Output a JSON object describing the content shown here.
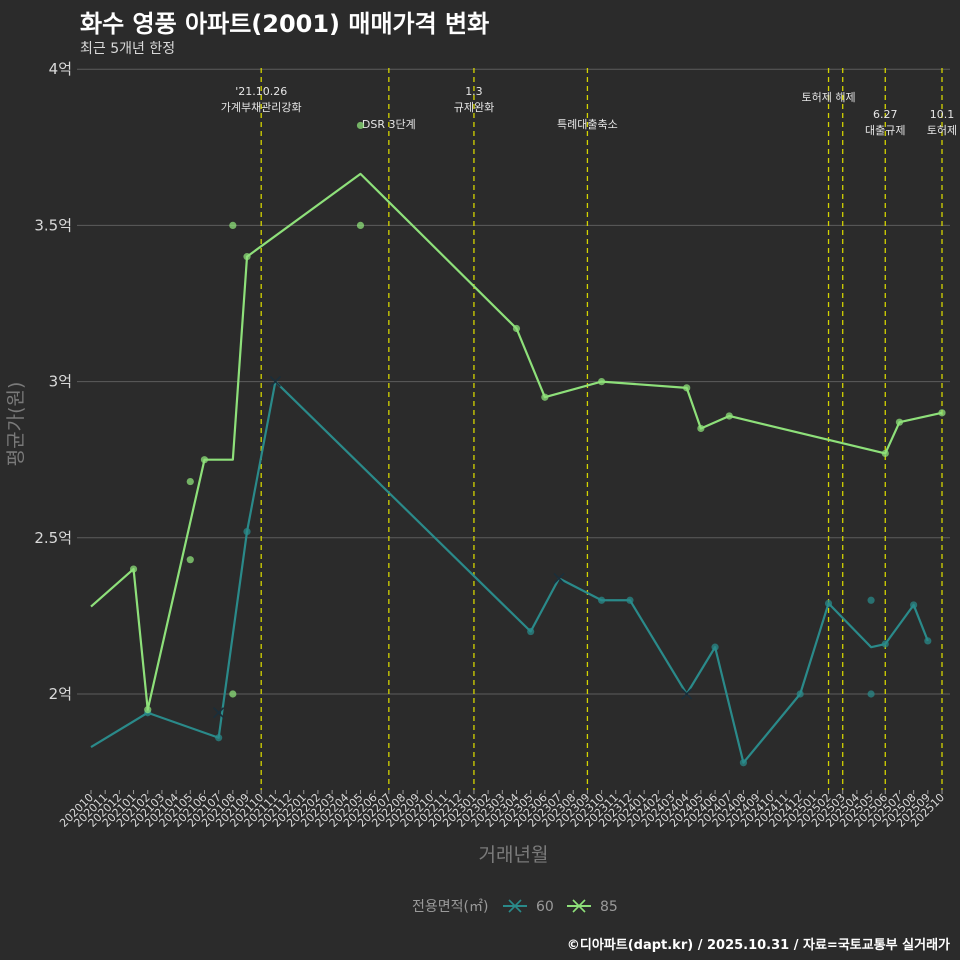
{
  "title": "화수 영풍 아파트(2001) 매매가격 변화",
  "subtitle": "최근 5개년 한정",
  "caption": "©디아파트(dapt.kr) / 2025.10.31 / 자료=국토교통부 실거래가",
  "colors": {
    "background": "#2b2b2b",
    "grid": "#5c5c5c",
    "vline": "#d4d400",
    "series_60": "#2a8a8a",
    "series_85": "#8ee07a"
  },
  "chart_data": {
    "type": "line",
    "title": "화수 영풍 아파트(2001) 매매가격 변화",
    "xlabel": "거래년월",
    "ylabel": "평균가(원)",
    "ylim": [
      1.7,
      4.0
    ],
    "y_ticks": [
      {
        "value": 2.0,
        "label": "2억"
      },
      {
        "value": 2.5,
        "label": "2.5억"
      },
      {
        "value": 3.0,
        "label": "3억"
      },
      {
        "value": 3.5,
        "label": "3.5억"
      },
      {
        "value": 4.0,
        "label": "4억"
      }
    ],
    "categories": [
      "202010",
      "202011",
      "202012",
      "202101",
      "202102",
      "202103",
      "202104",
      "202105",
      "202106",
      "202107",
      "202108",
      "202109",
      "202110",
      "202111",
      "202112",
      "202201",
      "202202",
      "202203",
      "202204",
      "202205",
      "202206",
      "202207",
      "202208",
      "202209",
      "202210",
      "202211",
      "202212",
      "202301",
      "202302",
      "202303",
      "202304",
      "202305",
      "202306",
      "202307",
      "202308",
      "202309",
      "202310",
      "202311",
      "202312",
      "202401",
      "202402",
      "202403",
      "202404",
      "202405",
      "202406",
      "202407",
      "202408",
      "202409",
      "202410",
      "202411",
      "202412",
      "202501",
      "202502",
      "202503",
      "202504",
      "202505",
      "202506",
      "202507",
      "202508",
      "202509",
      "202510"
    ],
    "legend_title": "전용면적(㎡)",
    "series": [
      {
        "name": "60",
        "color": "#2a8a8a",
        "line": [
          [
            "202010",
            1.83
          ],
          [
            "202102",
            1.94
          ],
          [
            "202107",
            1.86
          ],
          [
            "202109",
            2.52
          ],
          [
            "202111",
            3.0
          ],
          [
            "202305",
            2.2
          ],
          [
            "202307",
            2.37
          ],
          [
            "202310",
            2.3
          ],
          [
            "202312",
            2.3
          ],
          [
            "202404",
            2.0
          ],
          [
            "202406",
            2.15
          ],
          [
            "202408",
            1.78
          ],
          [
            "202412",
            2.0
          ],
          [
            "202502",
            2.29
          ],
          [
            "202505",
            2.15
          ],
          [
            "202506",
            2.16
          ],
          [
            "202508",
            2.285
          ],
          [
            "202509",
            2.17
          ]
        ],
        "points": [
          [
            "202102",
            1.94
          ],
          [
            "202107",
            1.86
          ],
          [
            "202109",
            2.52
          ],
          [
            "202305",
            2.2
          ],
          [
            "202310",
            2.3
          ],
          [
            "202312",
            2.3
          ],
          [
            "202406",
            2.15
          ],
          [
            "202408",
            1.78
          ],
          [
            "202412",
            2.0
          ],
          [
            "202502",
            2.29
          ],
          [
            "202505",
            2.3
          ],
          [
            "202505",
            2.0
          ],
          [
            "202506",
            2.16
          ],
          [
            "202508",
            2.285
          ],
          [
            "202509",
            2.17
          ]
        ],
        "crosses": [
          [
            "202107",
            1.94
          ],
          [
            "202111",
            3.0
          ],
          [
            "202307",
            2.37
          ],
          [
            "202404",
            2.0
          ]
        ]
      },
      {
        "name": "85",
        "color": "#8ee07a",
        "line": [
          [
            "202010",
            2.28
          ],
          [
            "202101",
            2.4
          ],
          [
            "202102",
            1.95
          ],
          [
            "202106",
            2.75
          ],
          [
            "202108",
            2.75
          ],
          [
            "202109",
            3.4
          ],
          [
            "202205",
            3.665
          ],
          [
            "202304",
            3.17
          ],
          [
            "202306",
            2.95
          ],
          [
            "202310",
            3.0
          ],
          [
            "202404",
            2.98
          ],
          [
            "202405",
            2.85
          ],
          [
            "202407",
            2.89
          ],
          [
            "202506",
            2.77
          ],
          [
            "202507",
            2.87
          ],
          [
            "202510",
            2.9
          ]
        ],
        "points": [
          [
            "202101",
            2.4
          ],
          [
            "202102",
            1.95
          ],
          [
            "202105",
            2.68
          ],
          [
            "202105",
            2.43
          ],
          [
            "202106",
            2.75
          ],
          [
            "202108",
            3.5
          ],
          [
            "202108",
            2.0
          ],
          [
            "202109",
            3.4
          ],
          [
            "202205",
            3.82
          ],
          [
            "202205",
            3.5
          ],
          [
            "202304",
            3.17
          ],
          [
            "202306",
            2.95
          ],
          [
            "202310",
            3.0
          ],
          [
            "202404",
            2.98
          ],
          [
            "202405",
            2.85
          ],
          [
            "202407",
            2.89
          ],
          [
            "202506",
            2.77
          ],
          [
            "202507",
            2.87
          ],
          [
            "202510",
            2.9
          ]
        ]
      }
    ],
    "annotations": [
      {
        "x": 12,
        "lines": [
          "'21.10.26",
          "가계부채관리강화"
        ],
        "row": 0
      },
      {
        "x": 21,
        "lines": [
          "DSR 3단계"
        ],
        "row": 2
      },
      {
        "x": 27,
        "lines": [
          "1.3",
          "규제완화"
        ],
        "row": 0
      },
      {
        "x": 35,
        "lines": [
          "특례대출축소"
        ],
        "row": 2
      },
      {
        "x": 52,
        "lines": [
          "토허제 해제"
        ],
        "row": 1
      },
      {
        "x": 53,
        "lines": [],
        "row": 1
      },
      {
        "x": 56,
        "lines": [
          "6.27",
          "대출규제"
        ],
        "row": 3
      },
      {
        "x": 60,
        "lines": [
          "10.1",
          "토허제"
        ],
        "row": 3
      }
    ]
  }
}
